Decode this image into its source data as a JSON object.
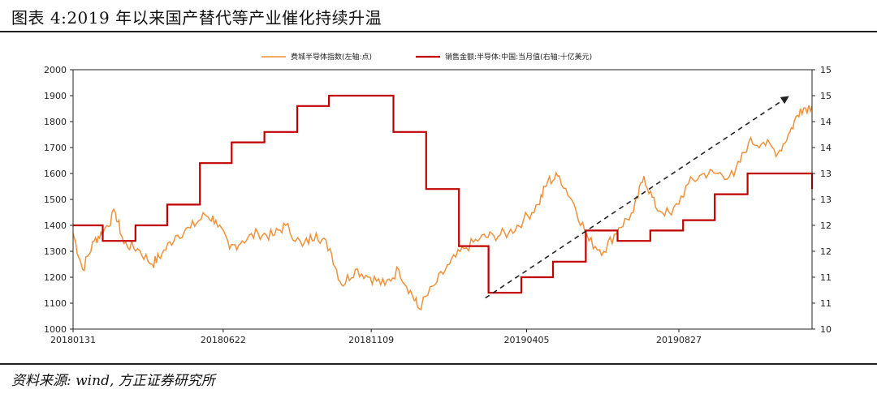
{
  "figure": {
    "title": "图表 4:2019 年以来国产替代等产业催化持续升温",
    "source": "资料来源:  wind,  方正证券研究所"
  },
  "colors": {
    "series_left": "#F0913A",
    "series_right": "#C00000",
    "arrow": "#222222",
    "axis": "#222222"
  },
  "chart_data": {
    "type": "line",
    "xlabel": "",
    "x_ticks": [
      "20180131",
      "20180622",
      "20181109",
      "20190405",
      "20190827"
    ],
    "x_range": [
      "2018-01-31",
      "2019-12-31"
    ],
    "y_left": {
      "ylim": [
        1000,
        2000
      ],
      "ticks": [
        "1000",
        "1100",
        "1200",
        "1300",
        "1400",
        "1500",
        "1600",
        "1700",
        "1800",
        "1900",
        "2000"
      ]
    },
    "y_right": {
      "ylim": [
        10,
        15
      ],
      "ticks": [
        "10",
        "11",
        "11",
        "12",
        "12",
        "13",
        "13",
        "14",
        "14",
        "15",
        "15"
      ]
    },
    "legend": {
      "placement": "top-center"
    },
    "series": [
      {
        "name": "费城半导体指数(左轴:点)",
        "axis": "left",
        "style": "line",
        "x": [
          "2018-01-31",
          "2018-02-09",
          "2018-02-20",
          "2018-03-01",
          "2018-03-12",
          "2018-03-20",
          "2018-04-02",
          "2018-04-16",
          "2018-04-25",
          "2018-05-08",
          "2018-05-22",
          "2018-06-05",
          "2018-06-15",
          "2018-06-28",
          "2018-07-10",
          "2018-07-25",
          "2018-08-08",
          "2018-08-20",
          "2018-09-05",
          "2018-09-18",
          "2018-10-01",
          "2018-10-12",
          "2018-10-25",
          "2018-11-08",
          "2018-11-22",
          "2018-12-05",
          "2018-12-18",
          "2018-12-24",
          "2019-01-08",
          "2019-01-22",
          "2019-02-05",
          "2019-02-20",
          "2019-03-05",
          "2019-03-19",
          "2019-04-02",
          "2019-04-16",
          "2019-04-25",
          "2019-05-06",
          "2019-05-20",
          "2019-06-03",
          "2019-06-17",
          "2019-07-01",
          "2019-07-15",
          "2019-07-25",
          "2019-08-05",
          "2019-08-20",
          "2019-09-05",
          "2019-09-20",
          "2019-10-03",
          "2019-10-18",
          "2019-11-01",
          "2019-11-15",
          "2019-11-29",
          "2019-12-10",
          "2019-12-20",
          "2019-12-31"
        ],
        "y": [
          1370,
          1230,
          1340,
          1380,
          1450,
          1330,
          1310,
          1250,
          1290,
          1360,
          1390,
          1440,
          1420,
          1310,
          1340,
          1370,
          1360,
          1400,
          1320,
          1370,
          1310,
          1170,
          1230,
          1200,
          1170,
          1230,
          1130,
          1080,
          1170,
          1250,
          1310,
          1350,
          1360,
          1370,
          1420,
          1480,
          1570,
          1590,
          1480,
          1340,
          1300,
          1390,
          1450,
          1590,
          1470,
          1440,
          1560,
          1600,
          1600,
          1590,
          1720,
          1720,
          1680,
          1760,
          1850,
          1860
        ]
      },
      {
        "name": "销售金额:半导体:中国:当月值(右轴:十亿美元)",
        "axis": "right",
        "style": "step",
        "x": [
          "2018-01-31",
          "2018-02-28",
          "2018-03-31",
          "2018-04-30",
          "2018-05-31",
          "2018-06-30",
          "2018-07-31",
          "2018-08-31",
          "2018-09-30",
          "2018-10-31",
          "2018-11-30",
          "2018-12-31",
          "2019-01-31",
          "2019-02-28",
          "2019-03-31",
          "2019-04-30",
          "2019-05-31",
          "2019-06-30",
          "2019-07-31",
          "2019-08-31",
          "2019-09-30",
          "2019-10-31",
          "2019-11-30",
          "2019-12-31"
        ],
        "y": [
          12.0,
          11.7,
          12.0,
          12.4,
          13.2,
          13.6,
          13.8,
          14.3,
          14.5,
          14.5,
          13.8,
          12.7,
          11.6,
          10.7,
          11.0,
          11.3,
          11.9,
          11.7,
          11.9,
          12.1,
          12.6,
          13.0,
          13.0,
          12.7
        ]
      }
    ],
    "annotations": [
      {
        "type": "arrow",
        "style": "dashed",
        "from": [
          "2019-02-25",
          1120
        ],
        "to": [
          "2019-12-08",
          1895
        ]
      }
    ]
  }
}
